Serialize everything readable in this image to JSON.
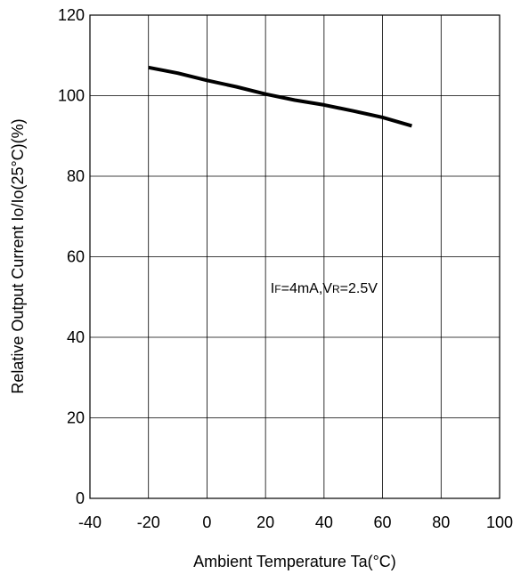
{
  "chart_data": {
    "type": "line",
    "xlabel": "Ambient Temperature Ta(°C)",
    "ylabel": "Relative Output Current Io/Io(25°C)(%)",
    "xlim": [
      -40,
      100
    ],
    "ylim": [
      0,
      120
    ],
    "xticks": [
      -40,
      -20,
      0,
      20,
      40,
      60,
      80,
      100
    ],
    "yticks": [
      0,
      20,
      40,
      60,
      80,
      100,
      120
    ],
    "grid": true,
    "annotation": {
      "parts": [
        {
          "text": "I",
          "sub": false
        },
        {
          "text": "F",
          "sub": true
        },
        {
          "text": "=4mA,V",
          "sub": false
        },
        {
          "text": "R",
          "sub": true
        },
        {
          "text": "=2.5V",
          "sub": false
        }
      ],
      "x": 40,
      "y": 51
    },
    "series": [
      {
        "x": [
          -20,
          -10,
          0,
          10,
          20,
          30,
          40,
          50,
          60,
          70
        ],
        "y": [
          107,
          105.6,
          103.8,
          102.2,
          100.4,
          98.9,
          97.7,
          96.2,
          94.6,
          92.5
        ]
      }
    ]
  }
}
